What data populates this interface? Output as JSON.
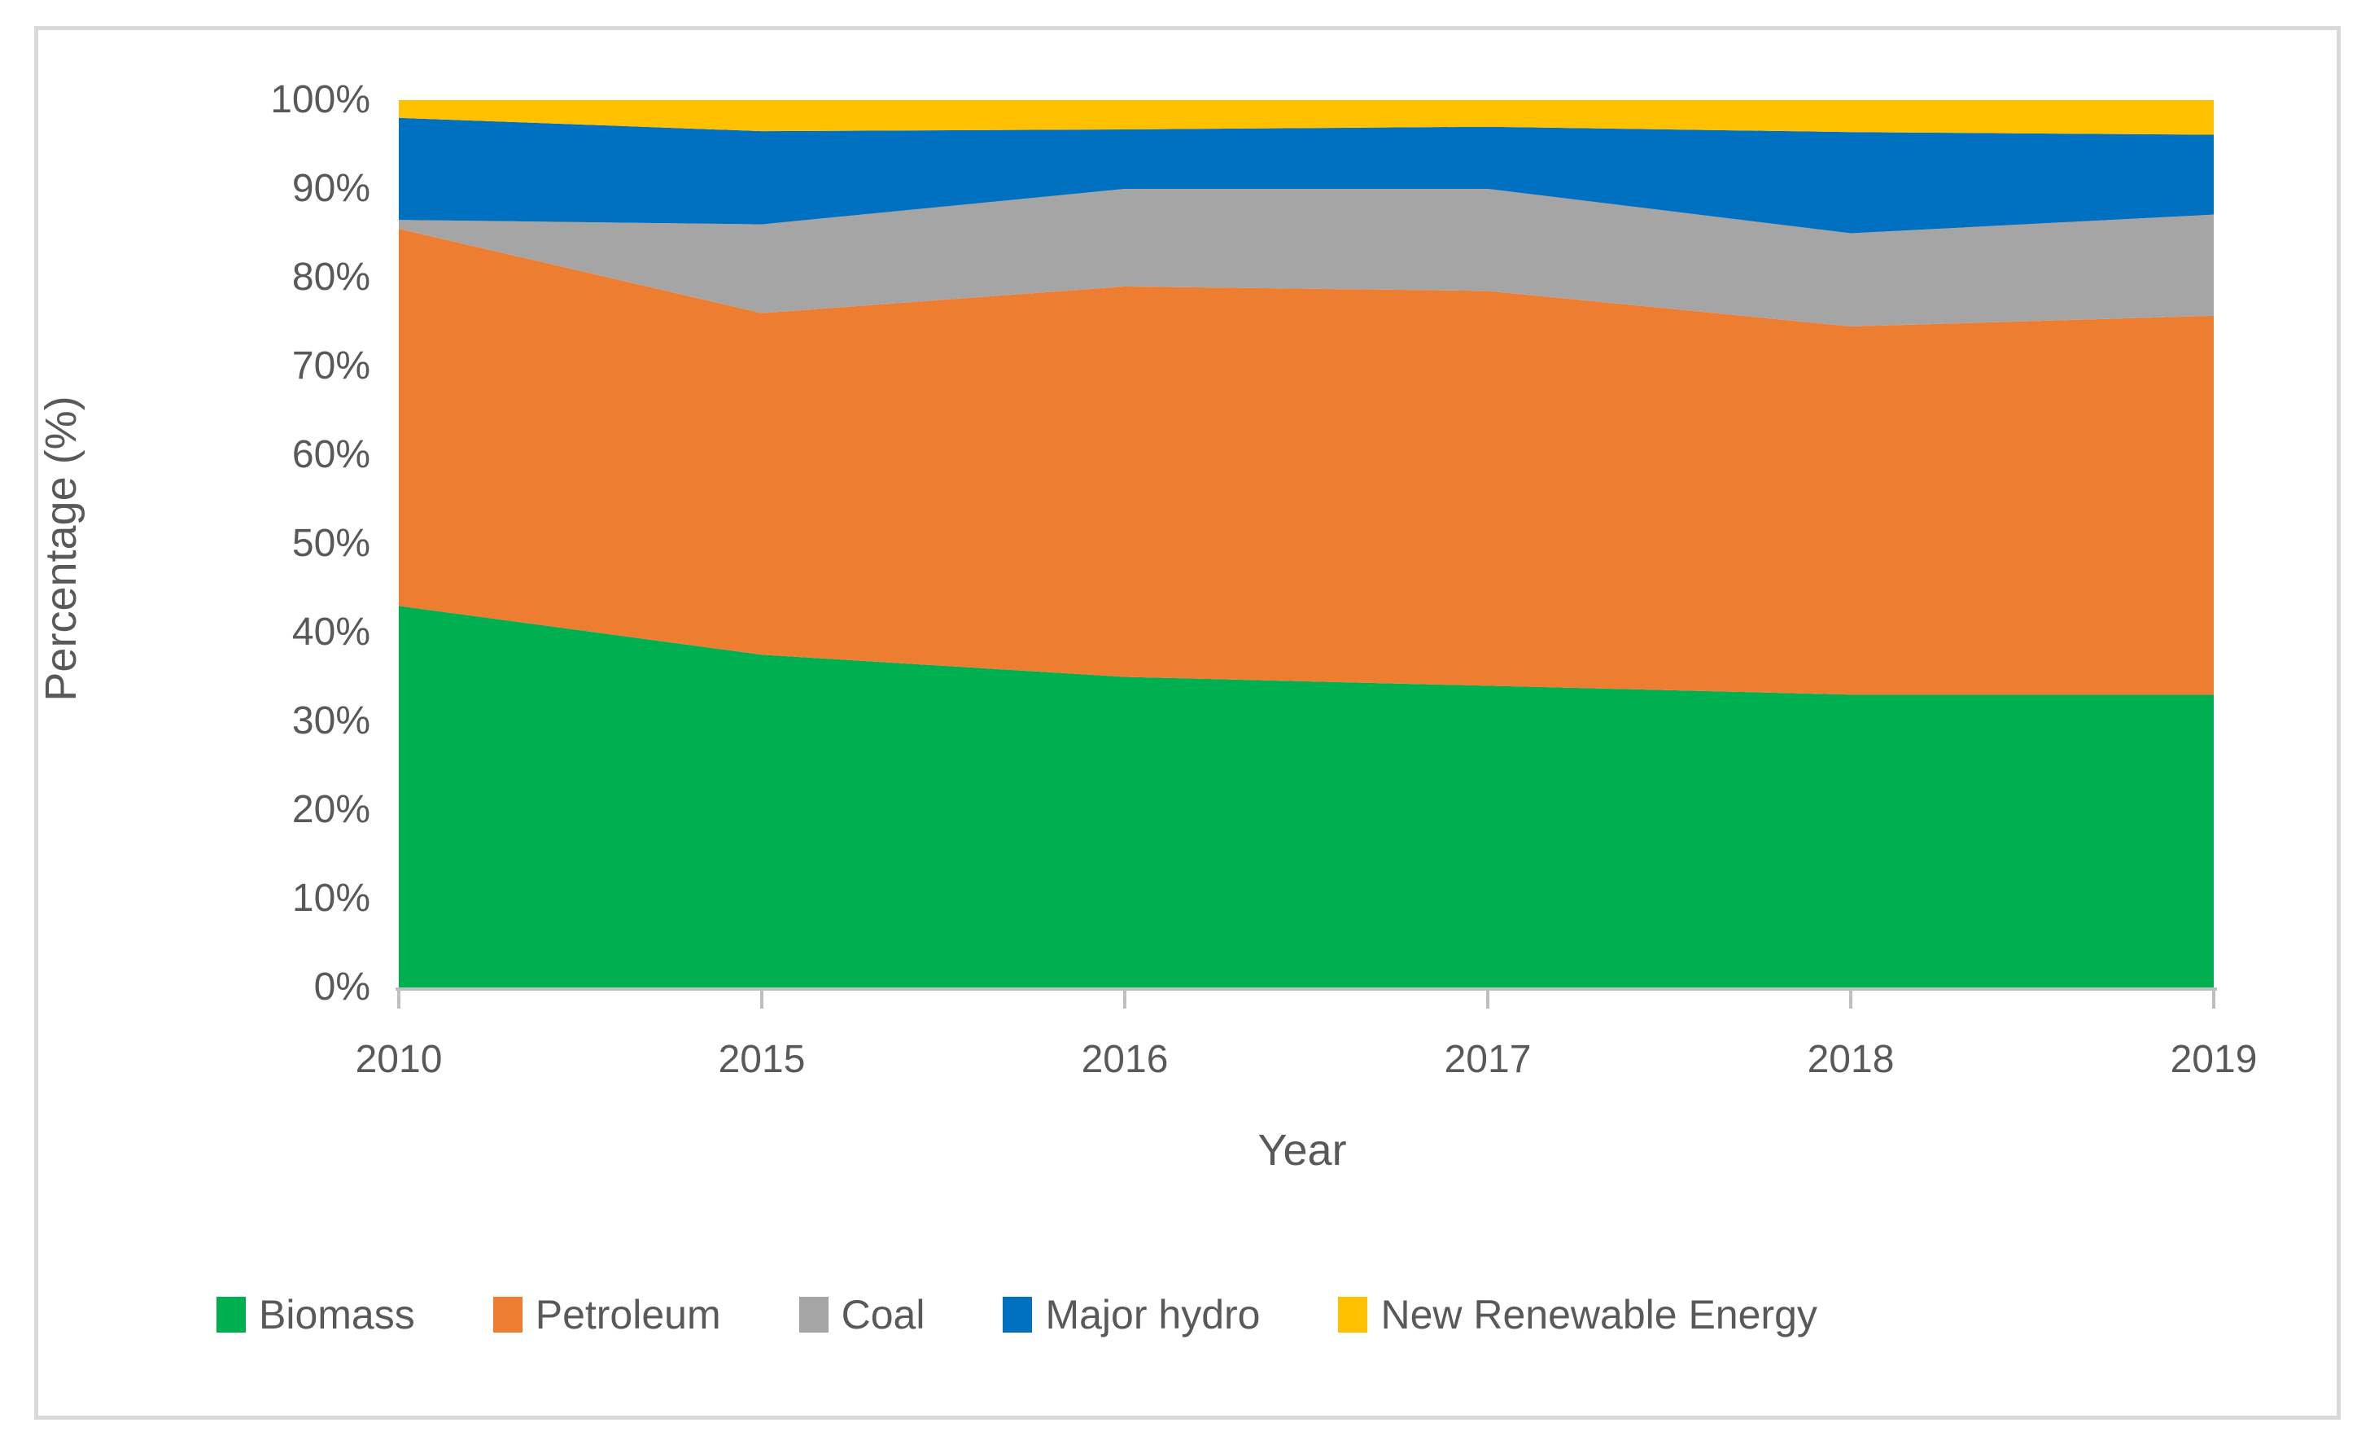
{
  "chart_data": {
    "type": "area",
    "stacked": true,
    "normalized_100pct": true,
    "categories": [
      "2010",
      "2015",
      "2016",
      "2017",
      "2018",
      "2019"
    ],
    "series": [
      {
        "name": "Biomass",
        "color": "#00B050",
        "values": [
          43.0,
          37.5,
          35.0,
          34.0,
          33.0,
          33.0
        ]
      },
      {
        "name": "Petroleum",
        "color": "#ED7D31",
        "values": [
          42.5,
          38.5,
          44.0,
          44.5,
          41.5,
          42.7
        ]
      },
      {
        "name": "Coal",
        "color": "#A5A5A5",
        "values": [
          1.0,
          10.0,
          11.0,
          11.5,
          10.5,
          11.4
        ]
      },
      {
        "name": "Major hydro",
        "color": "#0070C0",
        "values": [
          11.5,
          10.5,
          6.7,
          7.0,
          11.4,
          9.0
        ]
      },
      {
        "name": "New Renewable Energy",
        "color": "#FFC000",
        "values": [
          2.0,
          3.5,
          3.3,
          3.0,
          3.6,
          3.9
        ]
      }
    ],
    "xlabel": "Year",
    "ylabel": "Percentage (%)",
    "ylim": [
      0,
      100
    ],
    "y_tick_labels": [
      "0%",
      "10%",
      "20%",
      "30%",
      "40%",
      "50%",
      "60%",
      "70%",
      "80%",
      "90%",
      "100%"
    ],
    "grid": false,
    "legend_position": "bottom"
  },
  "axes": {
    "x_title": "Year",
    "y_title": "Percentage (%)"
  },
  "colors": {
    "text": "#595959",
    "axis_line": "#bfbfbf",
    "chart_border": "#d9d9d9",
    "background": "#ffffff"
  }
}
